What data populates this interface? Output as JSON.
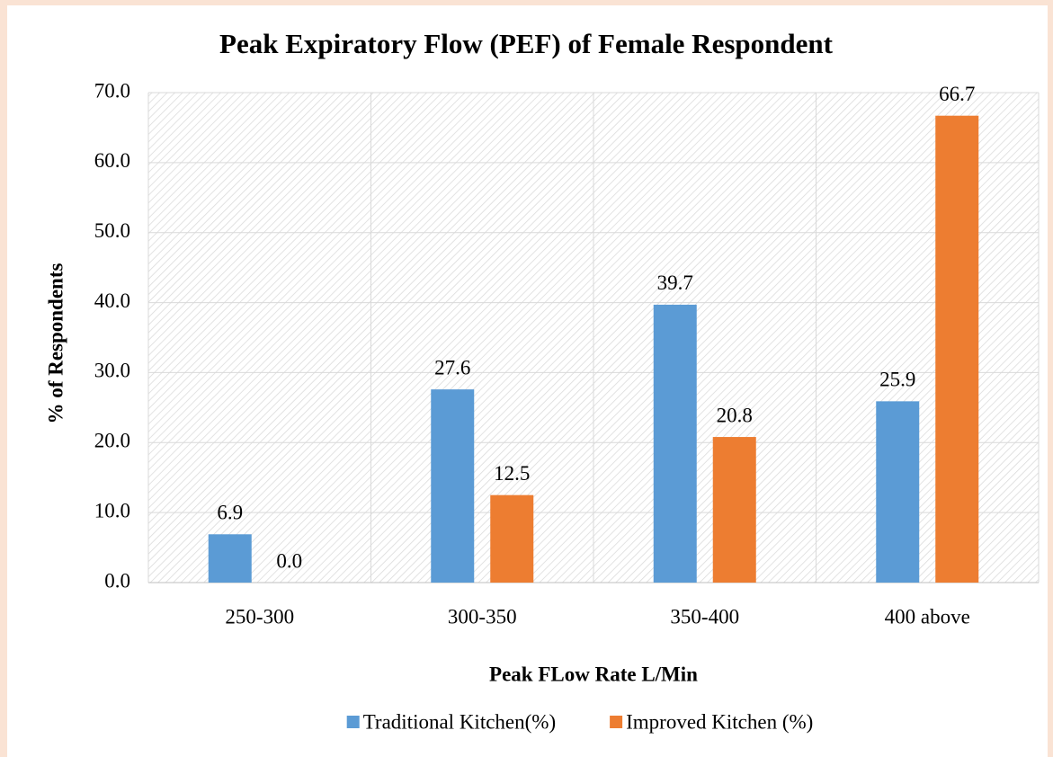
{
  "chart_data": {
    "type": "bar",
    "title": "Peak Expiratory Flow (PEF) of Female Respondent",
    "x_label": "Peak FLow Rate L/Min",
    "y_label": "% of Respondents",
    "categories": [
      "250-300",
      "300-350",
      "350-400",
      "400 above"
    ],
    "series": [
      {
        "name": "Traditional Kitchen(%)",
        "color": "#5b9bd5",
        "values": [
          6.9,
          27.6,
          39.7,
          25.9
        ],
        "value_labels": [
          "6.9",
          "27.6",
          "39.7",
          "25.9"
        ]
      },
      {
        "name": "Improved Kitchen (%)",
        "color": "#ed7d31",
        "values": [
          0,
          12.5,
          20.8,
          66.7
        ],
        "value_labels": [
          "0.0",
          "12.5",
          "20.8",
          "66.7"
        ]
      }
    ],
    "ylim": [
      0,
      70
    ],
    "yticks": [
      {
        "value": 0,
        "label": "0.0"
      },
      {
        "value": 10,
        "label": "10.0"
      },
      {
        "value": 20,
        "label": "20.0"
      },
      {
        "value": 30,
        "label": "30.0"
      },
      {
        "value": 40,
        "label": "40.0"
      },
      {
        "value": 50,
        "label": "50.0"
      },
      {
        "value": 60,
        "label": "60.0"
      },
      {
        "value": 70,
        "label": "70.0"
      }
    ],
    "grid": true,
    "legend": "bottom"
  }
}
